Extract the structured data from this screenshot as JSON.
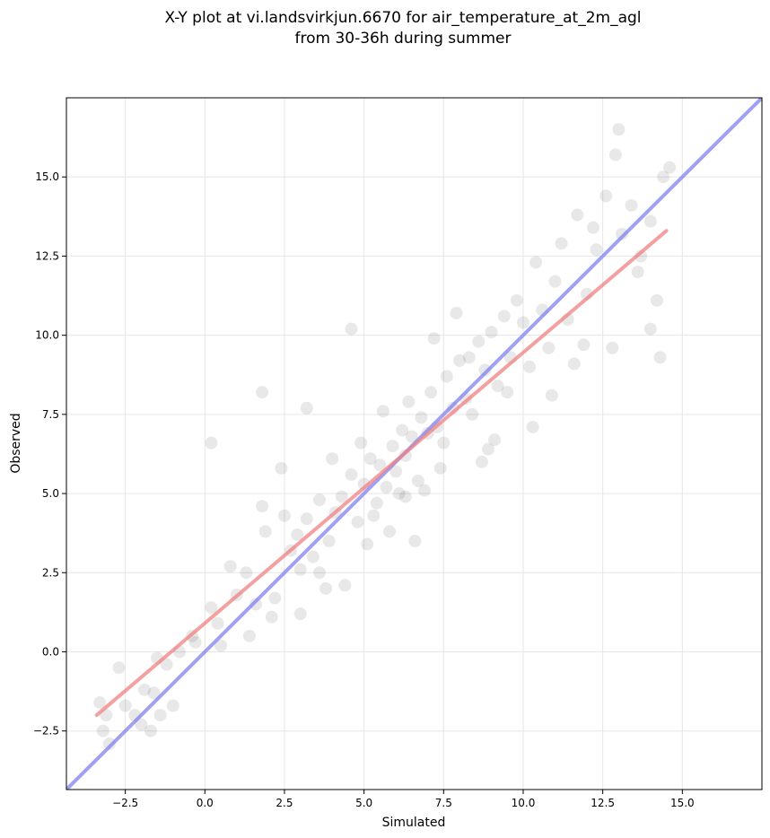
{
  "chart_data": {
    "type": "scatter",
    "title": [
      "X-Y plot at vi.landsvirkjun.6670 for air_temperature_at_2m_agl",
      "from 30-36h during summer"
    ],
    "xlabel": "Simulated",
    "ylabel": "Observed",
    "xlim": [
      -4.35,
      17.5
    ],
    "ylim": [
      -4.35,
      17.5
    ],
    "xticks": [
      -2.5,
      0.0,
      2.5,
      5.0,
      7.5,
      10.0,
      12.5,
      15.0
    ],
    "yticks": [
      -2.5,
      0.0,
      2.5,
      5.0,
      7.5,
      10.0,
      12.5,
      15.0
    ],
    "xtick_labels": [
      "−2.5",
      "0.0",
      "2.5",
      "5.0",
      "7.5",
      "10.0",
      "12.5",
      "15.0"
    ],
    "ytick_labels": [
      "−2.5",
      "0.0",
      "2.5",
      "5.0",
      "7.5",
      "10.0",
      "12.5",
      "15.0"
    ],
    "grid": true,
    "point_color": "#000000",
    "point_alpha": 0.09,
    "regression_line": {
      "color": "#f08080",
      "x": [
        -3.4,
        14.5
      ],
      "y": [
        -2.0,
        13.3
      ]
    },
    "identity_line": {
      "color": "#8080f0",
      "x": [
        -4.35,
        17.5
      ],
      "y": [
        -4.35,
        17.5
      ]
    },
    "points": {
      "x": [
        -3.3,
        -3.2,
        -3.1,
        -3.0,
        -2.7,
        -2.5,
        -2.2,
        -2.0,
        -1.9,
        -1.7,
        -1.6,
        -1.5,
        -1.4,
        -1.2,
        -1.0,
        -0.8,
        -0.4,
        0.2,
        0.4,
        0.5,
        1.0,
        1.3,
        1.6,
        1.8,
        1.9,
        2.2,
        2.4,
        2.7,
        3.0,
        3.2,
        3.4,
        3.6,
        3.9,
        4.1,
        4.3,
        4.6,
        4.8,
        5.0,
        5.2,
        5.4,
        5.5,
        5.7,
        5.9,
        6.0,
        6.2,
        6.3,
        6.5,
        6.7,
        6.8,
        7.0,
        7.1,
        7.3,
        7.5,
        7.6,
        7.8,
        8.0,
        8.2,
        8.4,
        8.6,
        8.8,
        9.0,
        9.2,
        9.4,
        9.6,
        9.8,
        10.0,
        10.2,
        10.4,
        10.6,
        10.8,
        11.0,
        11.2,
        11.4,
        11.7,
        12.0,
        12.3,
        12.6,
        12.9,
        13.1,
        13.4,
        13.7,
        14.0,
        14.2,
        14.4,
        14.6,
        14.0,
        14.3,
        13.0,
        12.8,
        3.2,
        2.5,
        1.8,
        0.2,
        -0.3,
        4.6,
        6.3,
        8.9,
        7.9,
        5.1,
        4.4,
        3.6,
        6.9,
        9.5,
        10.3,
        11.6,
        12.2,
        7.2,
        5.8,
        3.0,
        2.1,
        1.4,
        0.8,
        4.0,
        5.6,
        6.6,
        8.3,
        9.1,
        10.9,
        11.9,
        13.6,
        4.9,
        6.1,
        7.4,
        8.7,
        2.9,
        3.8,
        5.3,
        6.4
      ],
      "y": [
        -1.6,
        -2.5,
        -2.0,
        -2.9,
        -0.5,
        -1.7,
        -2.0,
        -2.3,
        -1.2,
        -2.5,
        -1.3,
        -0.2,
        -2.0,
        -0.4,
        -1.7,
        0.0,
        0.5,
        6.6,
        0.9,
        0.2,
        1.8,
        2.5,
        1.5,
        8.2,
        3.8,
        1.7,
        5.8,
        3.2,
        2.6,
        4.2,
        3.0,
        4.8,
        3.5,
        4.4,
        4.9,
        5.6,
        4.1,
        5.3,
        6.1,
        4.7,
        5.9,
        5.2,
        6.5,
        5.7,
        7.0,
        6.2,
        6.8,
        5.4,
        7.4,
        6.9,
        8.2,
        7.1,
        6.6,
        8.7,
        7.7,
        9.2,
        8.0,
        7.5,
        9.8,
        8.9,
        10.1,
        8.4,
        10.6,
        9.3,
        11.1,
        10.4,
        9.0,
        12.3,
        10.8,
        9.6,
        11.7,
        12.9,
        10.5,
        13.8,
        11.3,
        12.7,
        14.4,
        15.7,
        13.2,
        14.1,
        12.5,
        13.6,
        11.1,
        15.0,
        15.3,
        10.2,
        9.3,
        16.5,
        9.6,
        7.7,
        4.3,
        4.6,
        1.4,
        0.3,
        10.2,
        4.9,
        6.4,
        10.7,
        3.4,
        2.1,
        2.5,
        5.1,
        8.2,
        7.1,
        9.1,
        13.4,
        9.9,
        3.8,
        1.2,
        1.1,
        0.5,
        2.7,
        6.1,
        7.6,
        3.5,
        9.3,
        6.7,
        8.1,
        9.7,
        12.0,
        6.6,
        5.0,
        5.8,
        6.0,
        3.7,
        2.0,
        4.3,
        7.9
      ]
    }
  }
}
